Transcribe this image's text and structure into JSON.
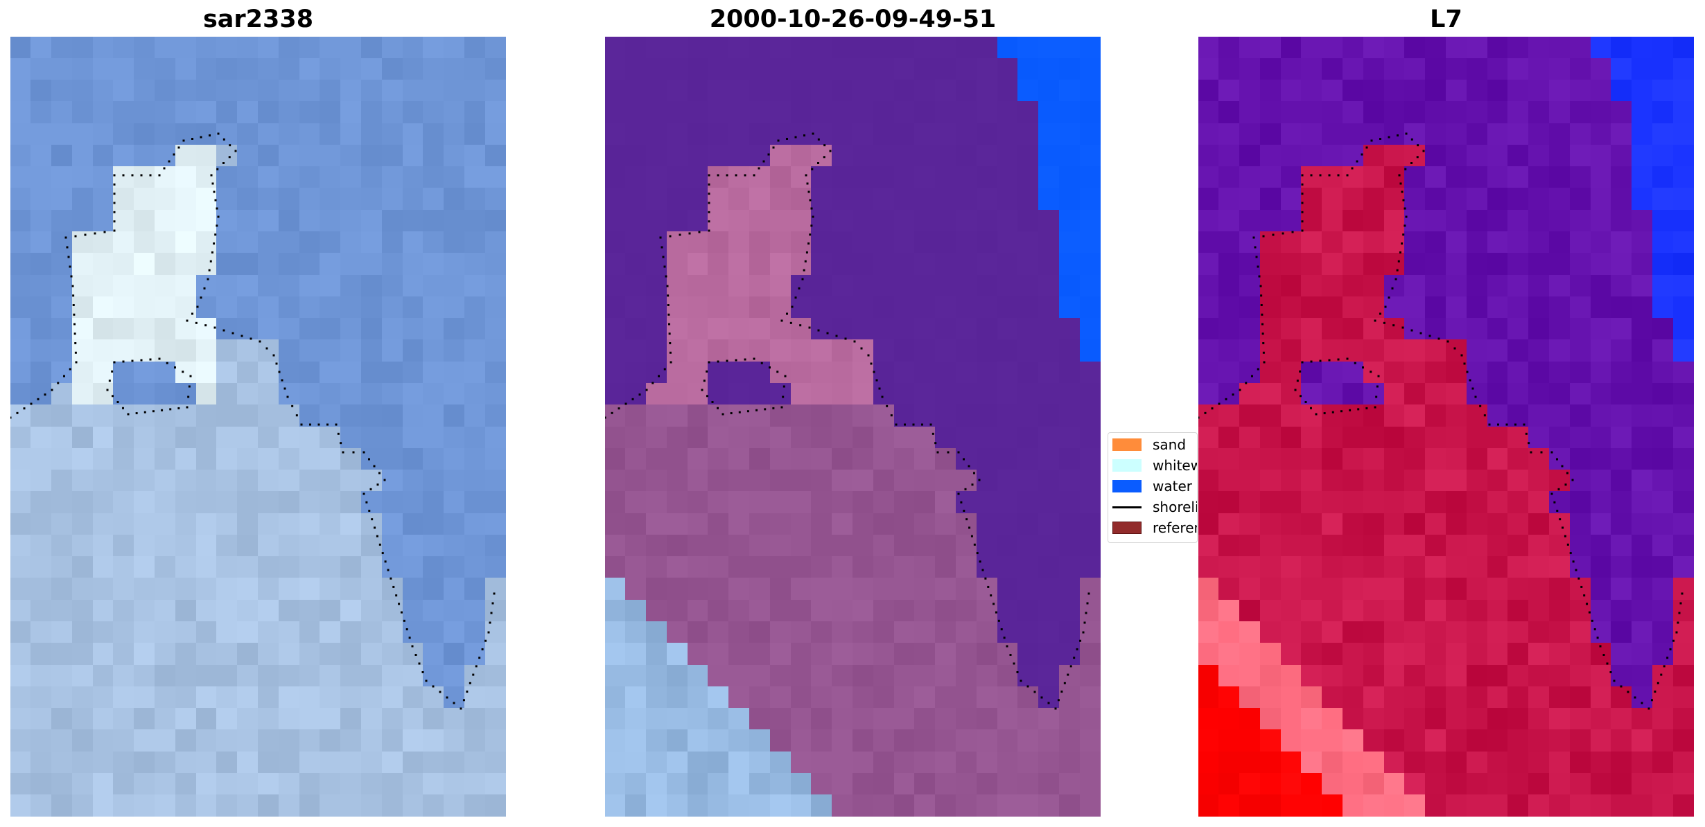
{
  "panels": [
    {
      "title": "sar2338"
    },
    {
      "title": "2000-10-26-09-49-51"
    },
    {
      "title": "L7"
    }
  ],
  "legend": {
    "items": [
      {
        "label": "sand",
        "color": "#ff8c3a",
        "kind": "patch"
      },
      {
        "label": "whitewater",
        "color": "#ccffff",
        "kind": "patch"
      },
      {
        "label": "water",
        "color": "#0a5cff",
        "kind": "patch"
      },
      {
        "label": "shoreline",
        "color": "#000000",
        "kind": "line"
      },
      {
        "label": "reference shoreline",
        "color": "#922b2b",
        "kind": "patch"
      }
    ]
  },
  "colors": {
    "sar_water": "#6e95d6",
    "sar_land": "#a8c2e2",
    "class_purple": "#5a2599",
    "class_pink": "#b86a9e",
    "class_mauve": "#955591",
    "class_water": "#0a5cff",
    "l7_purple": "#6411ad",
    "l7_crimson": "#c8144a",
    "l7_red": "#ff0000",
    "l7_blue": "#1a33ff"
  }
}
